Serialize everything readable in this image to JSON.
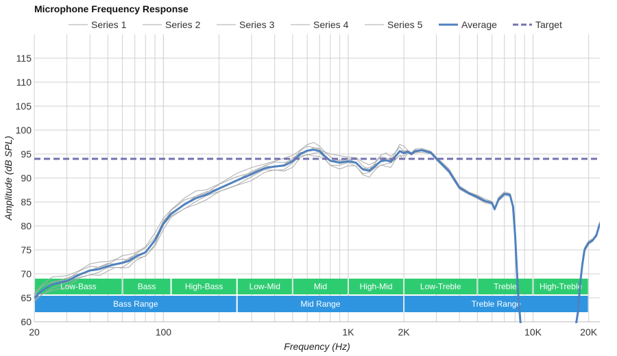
{
  "chart_data": {
    "type": "line",
    "title": "Microphone Frequency Response",
    "xlabel": "Frequency (Hz)",
    "ylabel": "Amplitude (dB SPL)",
    "x_scale": "log",
    "xlim": [
      20,
      23000
    ],
    "ylim": [
      60,
      120
    ],
    "x_ticks": [
      {
        "value": 20,
        "label": "20"
      },
      {
        "value": 100,
        "label": "100"
      },
      {
        "value": 1000,
        "label": "1K"
      },
      {
        "value": 2000,
        "label": "2K"
      },
      {
        "value": 10000,
        "label": "10K"
      },
      {
        "value": 20000,
        "label": "20K"
      }
    ],
    "y_ticks": [
      60,
      65,
      70,
      75,
      80,
      85,
      90,
      95,
      100,
      105,
      110,
      115
    ],
    "grid": true,
    "legend_position": "top",
    "legend": [
      "Series 1",
      "Series 2",
      "Series 3",
      "Series 4",
      "Series 5",
      "Average",
      "Target"
    ],
    "target": {
      "name": "Target",
      "value": 94,
      "color": "#7472b0"
    },
    "average": {
      "name": "Average",
      "color": "#4f81bd",
      "points": [
        [
          20,
          65
        ],
        [
          22,
          66.5
        ],
        [
          25,
          67.8
        ],
        [
          30,
          68.5
        ],
        [
          35,
          69.8
        ],
        [
          40,
          70.7
        ],
        [
          45,
          71.0
        ],
        [
          50,
          71.6
        ],
        [
          55,
          72.0
        ],
        [
          60,
          72.3
        ],
        [
          65,
          72.7
        ],
        [
          70,
          73.5
        ],
        [
          80,
          74.5
        ],
        [
          90,
          77.0
        ],
        [
          100,
          80.5
        ],
        [
          110,
          82.5
        ],
        [
          130,
          84.5
        ],
        [
          150,
          85.8
        ],
        [
          170,
          86.5
        ],
        [
          200,
          87.8
        ],
        [
          250,
          89.5
        ],
        [
          300,
          90.8
        ],
        [
          350,
          92.0
        ],
        [
          400,
          92.4
        ],
        [
          450,
          92.6
        ],
        [
          500,
          93.5
        ],
        [
          550,
          95.0
        ],
        [
          600,
          95.7
        ],
        [
          650,
          95.9
        ],
        [
          700,
          95.6
        ],
        [
          750,
          94.5
        ],
        [
          800,
          93.6
        ],
        [
          900,
          93.2
        ],
        [
          1000,
          93.5
        ],
        [
          1100,
          93.2
        ],
        [
          1200,
          91.8
        ],
        [
          1300,
          91.5
        ],
        [
          1400,
          92.5
        ],
        [
          1500,
          93.5
        ],
        [
          1600,
          93.7
        ],
        [
          1700,
          93.4
        ],
        [
          1800,
          94.5
        ],
        [
          1900,
          95.6
        ],
        [
          2000,
          95.2
        ],
        [
          2100,
          95.5
        ],
        [
          2200,
          95.0
        ],
        [
          2300,
          95.6
        ],
        [
          2500,
          95.8
        ],
        [
          2800,
          95.3
        ],
        [
          3000,
          94.0
        ],
        [
          3500,
          91.5
        ],
        [
          4000,
          88.0
        ],
        [
          4500,
          86.8
        ],
        [
          5000,
          86.0
        ],
        [
          5500,
          85.2
        ],
        [
          6000,
          84.8
        ],
        [
          6200,
          83.5
        ],
        [
          6500,
          85.5
        ],
        [
          7000,
          86.7
        ],
        [
          7500,
          86.5
        ],
        [
          7800,
          84.0
        ],
        [
          8000,
          78.0
        ],
        [
          8300,
          66.0
        ],
        [
          8600,
          58.0
        ],
        [
          17000,
          58.0
        ],
        [
          17500,
          62.0
        ],
        [
          18000,
          68.0
        ],
        [
          18500,
          72.0
        ],
        [
          19000,
          75.0
        ],
        [
          20000,
          76.5
        ],
        [
          21000,
          77.0
        ],
        [
          22000,
          78.0
        ],
        [
          23000,
          80.5
        ]
      ]
    },
    "series": [
      {
        "name": "Series 1",
        "color": "#aaaaaa",
        "offset": 0.6
      },
      {
        "name": "Series 2",
        "color": "#aaaaaa",
        "offset": -0.6
      },
      {
        "name": "Series 3",
        "color": "#aaaaaa",
        "offset": 1.2
      },
      {
        "name": "Series 4",
        "color": "#aaaaaa",
        "offset": -1.0
      },
      {
        "name": "Series 5",
        "color": "#aaaaaa",
        "offset": 0.3
      }
    ],
    "ranges_top": [
      {
        "label": "Low-Bass",
        "from": 20,
        "to": 60
      },
      {
        "label": "Bass",
        "from": 60,
        "to": 110
      },
      {
        "label": "High-Bass",
        "from": 110,
        "to": 250
      },
      {
        "label": "Low-Mid",
        "from": 250,
        "to": 500
      },
      {
        "label": "Mid",
        "from": 500,
        "to": 1000
      },
      {
        "label": "High-Mid",
        "from": 1000,
        "to": 2000
      },
      {
        "label": "Low-Treble",
        "from": 2000,
        "to": 5000
      },
      {
        "label": "Treble",
        "from": 5000,
        "to": 10000
      },
      {
        "label": "High-Treble",
        "from": 10000,
        "to": 20000
      }
    ],
    "ranges_bottom": [
      {
        "label": "Bass Range",
        "from": 20,
        "to": 250
      },
      {
        "label": "Mid Range",
        "from": 250,
        "to": 2000
      },
      {
        "label": "Treble Range",
        "from": 2000,
        "to": 20000
      }
    ],
    "range_colors": {
      "top": "#2ecc71",
      "bottom": "#2f95e0"
    }
  }
}
